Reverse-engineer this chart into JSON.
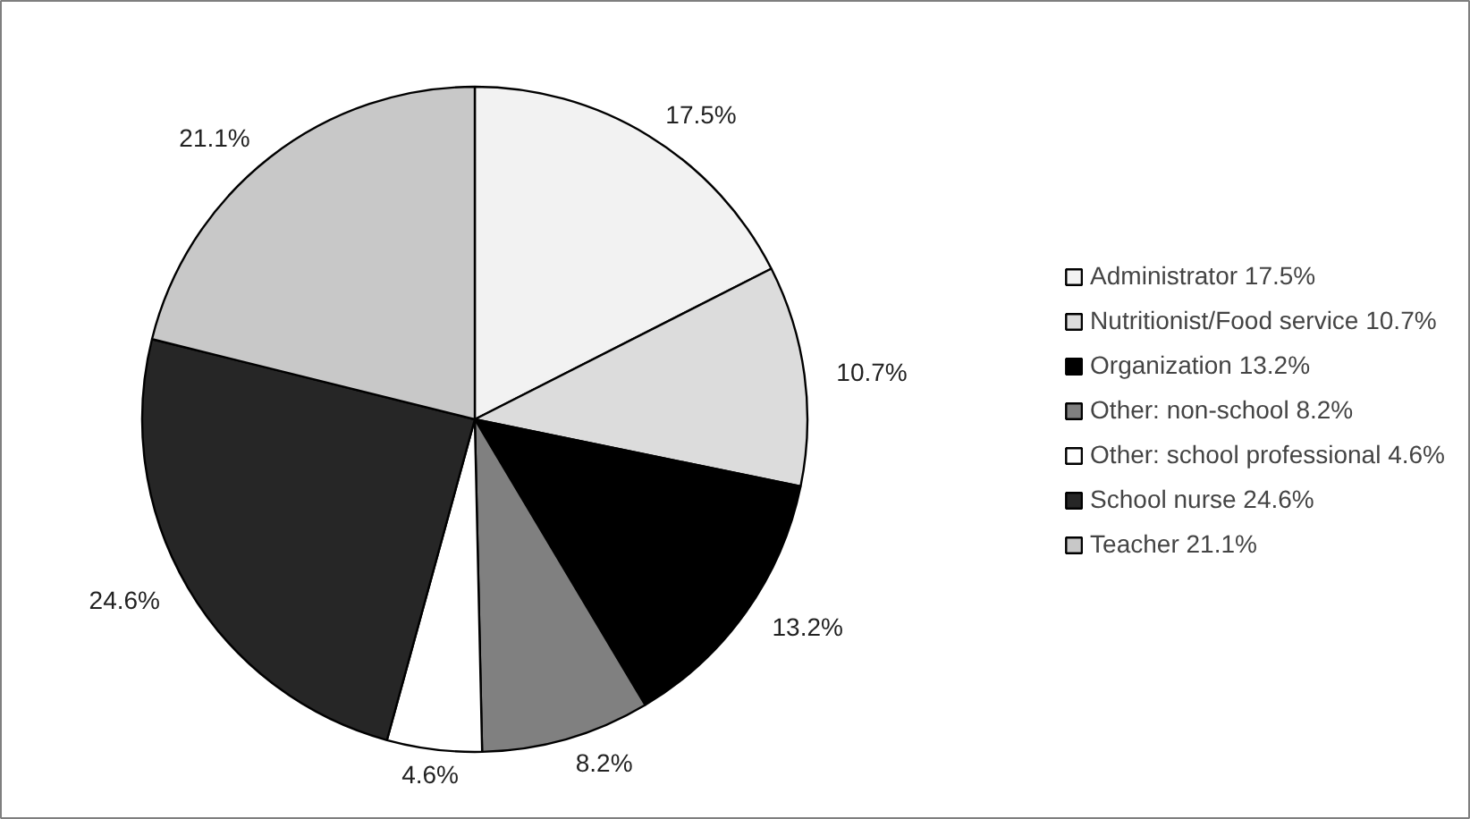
{
  "chart_data": {
    "type": "pie",
    "categories": [
      "Administrator 17.5%",
      "Nutritionist/Food service 10.7%",
      "Organization 13.2%",
      "Other: non-school 8.2%",
      "Other: school professional 4.6%",
      "School nurse 24.6%",
      "Teacher 21.1%"
    ],
    "values": [
      17.5,
      10.7,
      13.2,
      8.2,
      4.6,
      24.6,
      21.1
    ],
    "colors": [
      "#f2f2f2",
      "#dcdcdc",
      "#000000",
      "#808080",
      "#ffffff",
      "#262626",
      "#c8c8c8"
    ],
    "value_labels": [
      "17.5%",
      "10.7%",
      "13.2%",
      "8.2%",
      "4.6%",
      "24.6%",
      "21.1%"
    ],
    "legend": "right"
  }
}
